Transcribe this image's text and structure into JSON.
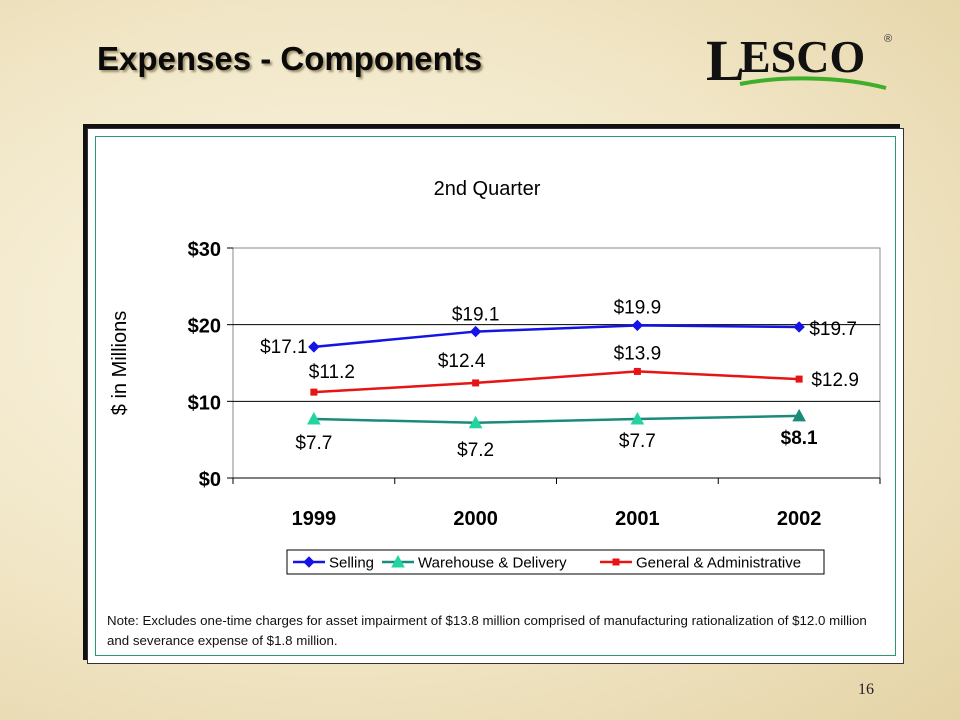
{
  "slide": {
    "title": "Expenses - Components",
    "logo_text": "LESCO",
    "logo_mark": "®",
    "note_label": "Note:",
    "note_text": "Excludes one-time charges for asset impairment of $13.8 million comprised of manufacturing rationalization of $12.0 million and severance expense of $1.8 million.",
    "page_number": "16"
  },
  "colors": {
    "selling": "#1414e6",
    "warehouse_marker": "#22d4a0",
    "warehouse_line": "#1a8a7a",
    "ga": "#e61414",
    "logo_swoosh": "#3fae2a"
  },
  "chart_data": {
    "type": "line",
    "title": "2nd Quarter",
    "xlabel": "",
    "ylabel": "$ in Millions",
    "categories": [
      "1999",
      "2000",
      "2001",
      "2002"
    ],
    "ylim": [
      0,
      30
    ],
    "yticks": [
      "$0",
      "$10",
      "$20",
      "$30"
    ],
    "grid": "horizontal",
    "legend_position": "bottom",
    "series": [
      {
        "name": "Selling",
        "values": [
          17.1,
          19.1,
          19.9,
          19.7
        ],
        "labels": [
          "$17.1",
          "$19.1",
          "$19.9",
          "$19.7"
        ],
        "marker": "diamond"
      },
      {
        "name": "Warehouse & Delivery",
        "values": [
          7.7,
          7.2,
          7.7,
          8.1
        ],
        "labels": [
          "$7.7",
          "$7.2",
          "$7.7",
          "$8.1"
        ],
        "marker": "triangle"
      },
      {
        "name": "General & Administrative",
        "values": [
          11.2,
          12.4,
          13.9,
          12.9
        ],
        "labels": [
          "$11.2",
          "$12.4",
          "$13.9",
          "$12.9"
        ],
        "marker": "square"
      }
    ]
  }
}
